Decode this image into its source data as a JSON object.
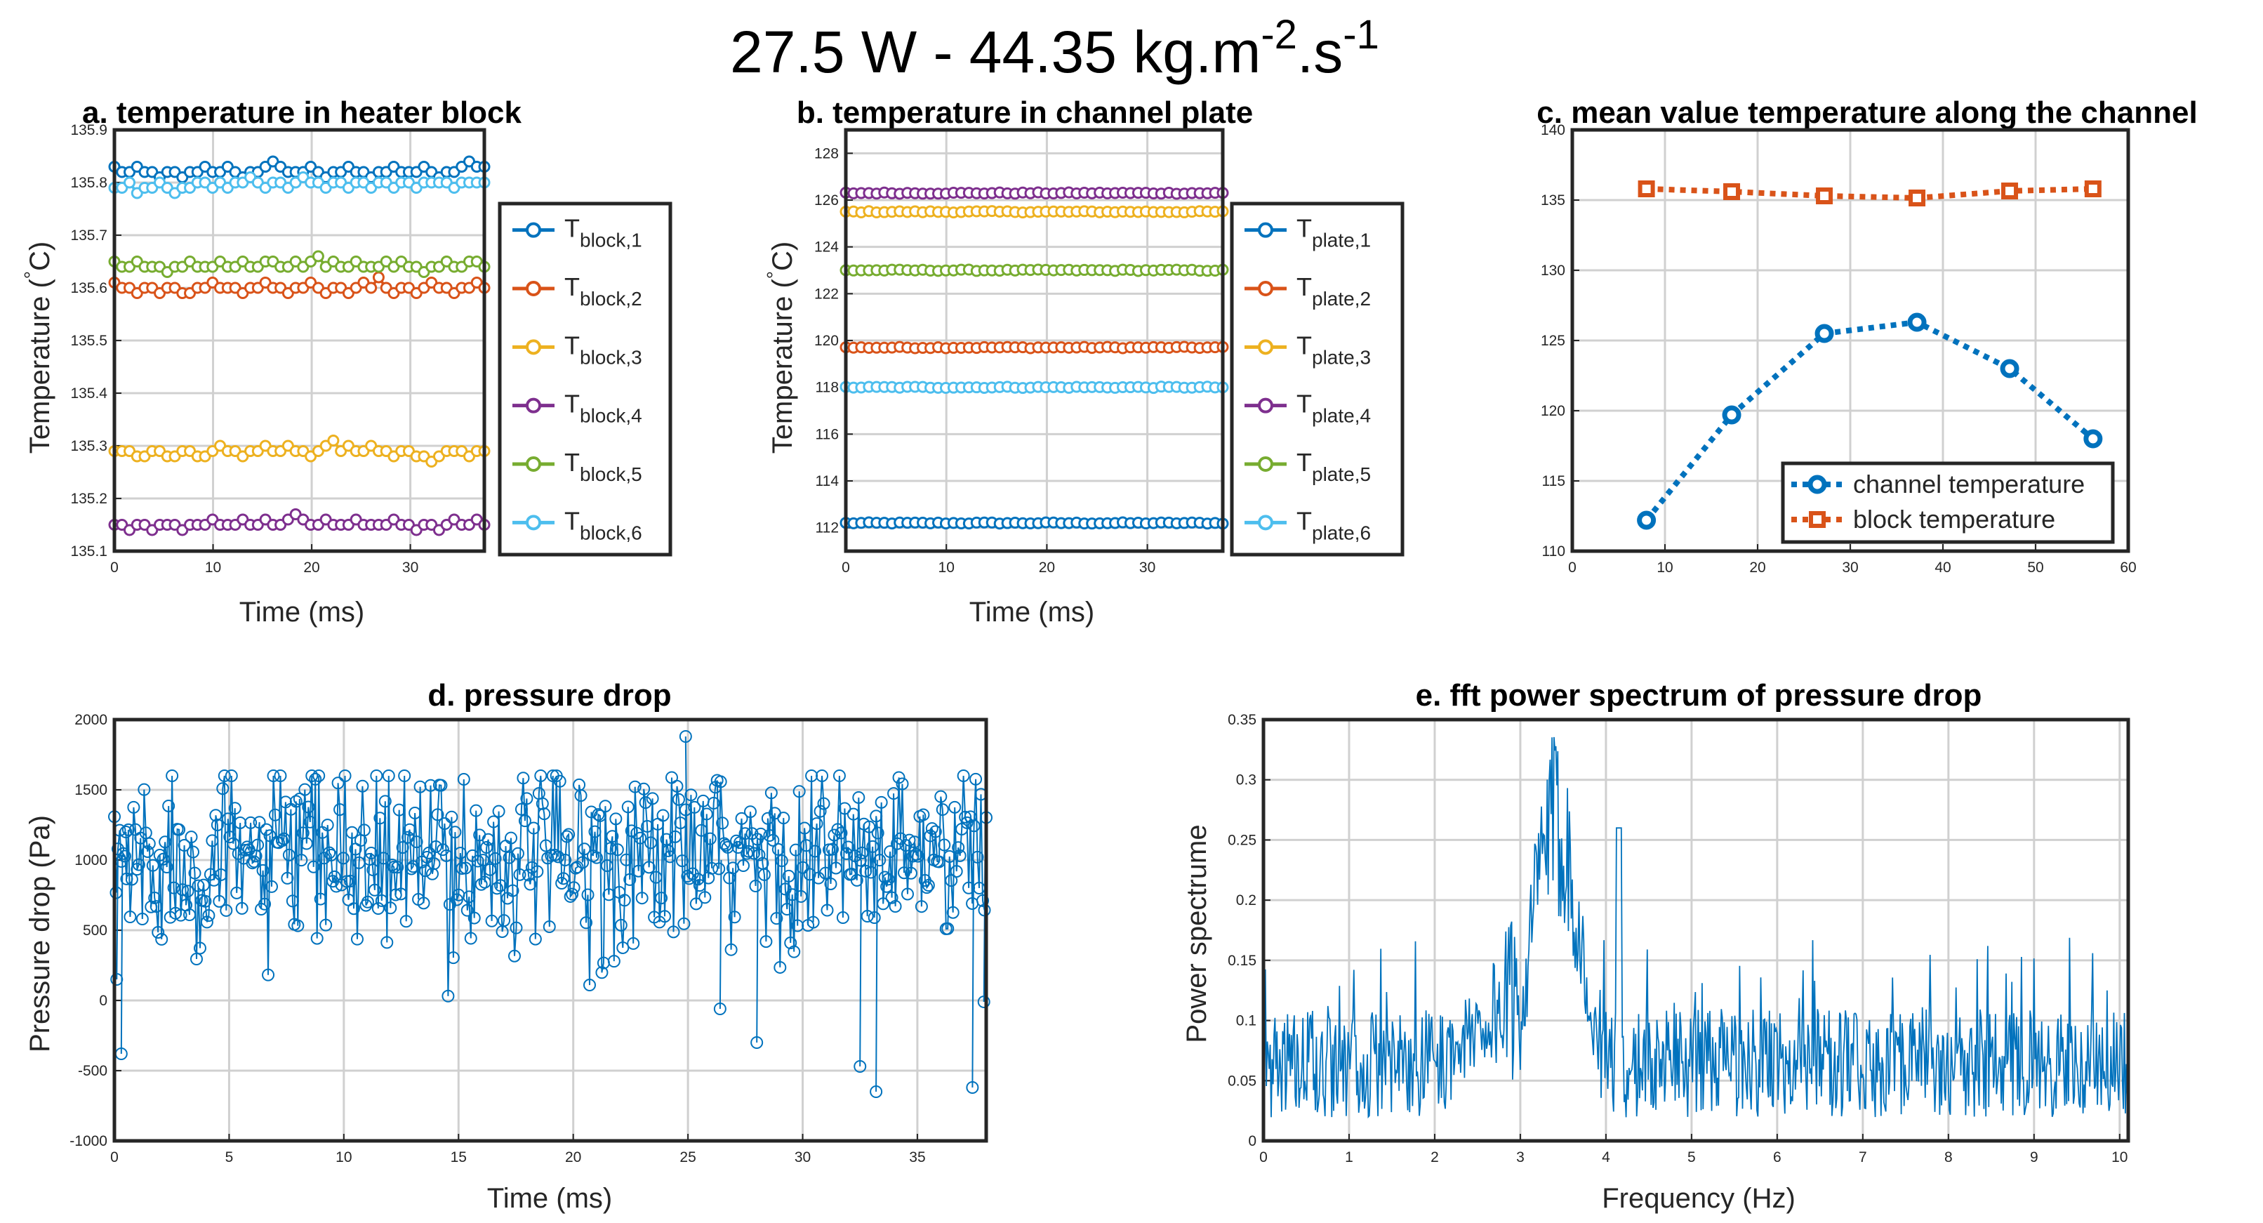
{
  "figure_title": {
    "base": "27.5 W - 44.35 kg.m",
    "exp1": "-2",
    "mid": ".s",
    "exp2": "-1"
  },
  "chart_data": [
    {
      "id": "a",
      "type": "line",
      "title": "a. temperature in heater block",
      "xlabel": "Time (ms)",
      "ylabel": "Temperature (",
      "ylabel_deg": "°",
      "ylabel_unit": "C)",
      "xlim": [
        0,
        37.5
      ],
      "ylim": [
        135.1,
        135.9
      ],
      "xticks": [
        0,
        10,
        20,
        30
      ],
      "yticks": [
        135.1,
        135.2,
        135.3,
        135.4,
        135.5,
        135.6,
        135.7,
        135.8,
        135.9
      ],
      "ytick_labels": [
        "135.1",
        "135.2",
        "135.3",
        "135.4",
        "135.5",
        "135.6",
        "135.7",
        "135.8",
        "135.9"
      ],
      "grid": true,
      "legend_position": "outside-right",
      "series": [
        {
          "name": "T",
          "sub": "block,1",
          "color": "#0072BD",
          "values": [
            135.83,
            135.82,
            135.82,
            135.83,
            135.82,
            135.82,
            135.81,
            135.82,
            135.82,
            135.81,
            135.82,
            135.82,
            135.83,
            135.82,
            135.82,
            135.83,
            135.82,
            135.81,
            135.82,
            135.82,
            135.83,
            135.84,
            135.83,
            135.82,
            135.82,
            135.82,
            135.83,
            135.82,
            135.81,
            135.82,
            135.82,
            135.83,
            135.82,
            135.82,
            135.81,
            135.82,
            135.82,
            135.83,
            135.82,
            135.82,
            135.82,
            135.83,
            135.82,
            135.81,
            135.82,
            135.82,
            135.83,
            135.84,
            135.83,
            135.83
          ]
        },
        {
          "name": "T",
          "sub": "block,2",
          "color": "#D95319",
          "values": [
            135.61,
            135.6,
            135.6,
            135.59,
            135.6,
            135.6,
            135.59,
            135.6,
            135.6,
            135.59,
            135.59,
            135.6,
            135.6,
            135.61,
            135.6,
            135.6,
            135.6,
            135.59,
            135.6,
            135.6,
            135.61,
            135.6,
            135.6,
            135.59,
            135.6,
            135.6,
            135.61,
            135.6,
            135.59,
            135.6,
            135.6,
            135.59,
            135.6,
            135.61,
            135.6,
            135.62,
            135.6,
            135.59,
            135.6,
            135.6,
            135.59,
            135.6,
            135.61,
            135.6,
            135.6,
            135.59,
            135.6,
            135.6,
            135.61,
            135.6
          ]
        },
        {
          "name": "T",
          "sub": "block,3",
          "color": "#EDB120",
          "values": [
            135.29,
            135.29,
            135.29,
            135.28,
            135.28,
            135.29,
            135.29,
            135.28,
            135.28,
            135.29,
            135.29,
            135.28,
            135.28,
            135.29,
            135.3,
            135.29,
            135.29,
            135.28,
            135.29,
            135.29,
            135.3,
            135.29,
            135.29,
            135.3,
            135.29,
            135.29,
            135.28,
            135.29,
            135.3,
            135.31,
            135.29,
            135.3,
            135.29,
            135.29,
            135.3,
            135.29,
            135.29,
            135.28,
            135.29,
            135.29,
            135.28,
            135.28,
            135.27,
            135.28,
            135.29,
            135.29,
            135.29,
            135.28,
            135.29,
            135.29
          ]
        },
        {
          "name": "T",
          "sub": "block,4",
          "color": "#7E2F8E",
          "values": [
            135.15,
            135.15,
            135.14,
            135.15,
            135.15,
            135.14,
            135.15,
            135.15,
            135.15,
            135.14,
            135.15,
            135.15,
            135.15,
            135.16,
            135.15,
            135.15,
            135.15,
            135.16,
            135.15,
            135.15,
            135.16,
            135.15,
            135.15,
            135.16,
            135.17,
            135.16,
            135.15,
            135.15,
            135.16,
            135.15,
            135.15,
            135.15,
            135.16,
            135.15,
            135.15,
            135.15,
            135.15,
            135.16,
            135.15,
            135.15,
            135.14,
            135.15,
            135.15,
            135.14,
            135.15,
            135.16,
            135.15,
            135.15,
            135.16,
            135.15
          ]
        },
        {
          "name": "T",
          "sub": "block,5",
          "color": "#77AC30",
          "values": [
            135.65,
            135.64,
            135.64,
            135.65,
            135.64,
            135.64,
            135.64,
            135.63,
            135.64,
            135.64,
            135.65,
            135.64,
            135.64,
            135.64,
            135.65,
            135.64,
            135.64,
            135.65,
            135.64,
            135.64,
            135.65,
            135.65,
            135.64,
            135.64,
            135.65,
            135.64,
            135.65,
            135.66,
            135.64,
            135.65,
            135.64,
            135.64,
            135.65,
            135.64,
            135.64,
            135.64,
            135.65,
            135.64,
            135.65,
            135.64,
            135.64,
            135.63,
            135.64,
            135.64,
            135.65,
            135.64,
            135.64,
            135.65,
            135.65,
            135.64
          ]
        },
        {
          "name": "T",
          "sub": "block,6",
          "color": "#4DBEEE",
          "values": [
            135.79,
            135.79,
            135.8,
            135.78,
            135.79,
            135.79,
            135.8,
            135.79,
            135.78,
            135.79,
            135.79,
            135.8,
            135.8,
            135.79,
            135.8,
            135.79,
            135.8,
            135.8,
            135.81,
            135.8,
            135.79,
            135.8,
            135.8,
            135.79,
            135.8,
            135.81,
            135.8,
            135.8,
            135.79,
            135.8,
            135.8,
            135.79,
            135.8,
            135.8,
            135.79,
            135.8,
            135.8,
            135.79,
            135.8,
            135.8,
            135.79,
            135.8,
            135.8,
            135.8,
            135.8,
            135.79,
            135.8,
            135.8,
            135.8,
            135.8
          ]
        }
      ]
    },
    {
      "id": "b",
      "type": "line",
      "title": "b. temperature in channel plate",
      "xlabel": "Time (ms)",
      "ylabel": "Temperature (",
      "ylabel_deg": "°",
      "ylabel_unit": "C)",
      "xlim": [
        0,
        37.5
      ],
      "ylim": [
        111,
        129
      ],
      "xticks": [
        0,
        10,
        20,
        30
      ],
      "yticks": [
        112,
        114,
        116,
        118,
        120,
        122,
        124,
        126,
        128
      ],
      "ytick_labels": [
        "112",
        "114",
        "116",
        "118",
        "120",
        "122",
        "124",
        "126",
        "128"
      ],
      "grid": true,
      "legend_position": "outside-right",
      "series": [
        {
          "name": "T",
          "sub": "plate,1",
          "color": "#0072BD",
          "level": 112.2
        },
        {
          "name": "T",
          "sub": "plate,2",
          "color": "#D95319",
          "level": 119.7
        },
        {
          "name": "T",
          "sub": "plate,3",
          "color": "#EDB120",
          "level": 125.5
        },
        {
          "name": "T",
          "sub": "plate,4",
          "color": "#7E2F8E",
          "level": 126.3
        },
        {
          "name": "T",
          "sub": "plate,5",
          "color": "#77AC30",
          "level": 123.0
        },
        {
          "name": "T",
          "sub": "plate,6",
          "color": "#4DBEEE",
          "level": 118.0
        }
      ]
    },
    {
      "id": "c",
      "type": "line",
      "title": "c. mean value temperature along the channel",
      "xlabel": "",
      "ylabel": "",
      "xlim": [
        0,
        60
      ],
      "ylim": [
        110,
        140
      ],
      "xticks": [
        0,
        10,
        20,
        30,
        40,
        50,
        60
      ],
      "yticks": [
        110,
        115,
        120,
        125,
        130,
        135,
        140
      ],
      "ytick_labels": [
        "110",
        "115",
        "120",
        "125",
        "130",
        "135",
        "140"
      ],
      "grid": true,
      "legend_position": "bottom-right",
      "x": [
        8,
        17.2,
        27.2,
        37.2,
        47.2,
        56.2
      ],
      "series": [
        {
          "name": "channel temperature",
          "color": "#0072BD",
          "marker": "circle",
          "values": [
            112.2,
            119.7,
            125.5,
            126.3,
            123.0,
            118.0
          ]
        },
        {
          "name": "block temperature",
          "color": "#D95319",
          "marker": "square",
          "values": [
            135.8,
            135.6,
            135.3,
            135.15,
            135.65,
            135.8
          ]
        }
      ]
    },
    {
      "id": "d",
      "type": "scatter",
      "title": "d. pressure drop",
      "xlabel": "Time (ms)",
      "ylabel": "Pressure drop (Pa)",
      "xlim": [
        0,
        38
      ],
      "ylim": [
        -1000,
        2000
      ],
      "xticks": [
        0,
        5,
        10,
        15,
        20,
        25,
        30,
        35
      ],
      "yticks": [
        -1000,
        -500,
        0,
        500,
        1000,
        1500,
        2000
      ],
      "ytick_labels": [
        "-1000",
        "-500",
        "0",
        "500",
        "1000",
        "1500",
        "2000"
      ],
      "grid": true,
      "series": [
        {
          "name": "pressure drop",
          "color": "#0072BD",
          "baseline": 1000,
          "n_points": 500,
          "noise_sd": 330,
          "notable_points": [
            [
              0.1,
              150
            ],
            [
              0.3,
              -380
            ],
            [
              0.5,
              1200
            ],
            [
              24.9,
              1880
            ],
            [
              26.4,
              -60
            ],
            [
              28,
              -300
            ],
            [
              32.5,
              -470
            ],
            [
              33.2,
              -650
            ],
            [
              37.4,
              -620
            ],
            [
              37.9,
              -10
            ]
          ]
        }
      ]
    },
    {
      "id": "e",
      "type": "line",
      "title": "e. fft power spectrum of pressure drop",
      "xlabel": "Frequency (Hz)",
      "ylabel": "Power spectrume",
      "xlim": [
        0,
        10.1
      ],
      "ylim": [
        0,
        0.35
      ],
      "xticks": [
        0,
        1,
        2,
        3,
        4,
        5,
        6,
        7,
        8,
        9,
        10
      ],
      "yticks": [
        0,
        0.05,
        0.1,
        0.15,
        0.2,
        0.25,
        0.3,
        0.35
      ],
      "ytick_labels": [
        "0",
        "0.05",
        "0.1",
        "0.15",
        "0.2",
        "0.25",
        "0.3",
        "0.35"
      ],
      "grid": true,
      "series": [
        {
          "name": "power spectrum",
          "color": "#0072BD",
          "n_points": 900,
          "baseline": 0.06,
          "peak_band_hz": [
            3.0,
            3.9
          ],
          "peak_max": 0.345,
          "secondary_peak_hz": 4.15,
          "secondary_peak": 0.26
        }
      ]
    }
  ]
}
